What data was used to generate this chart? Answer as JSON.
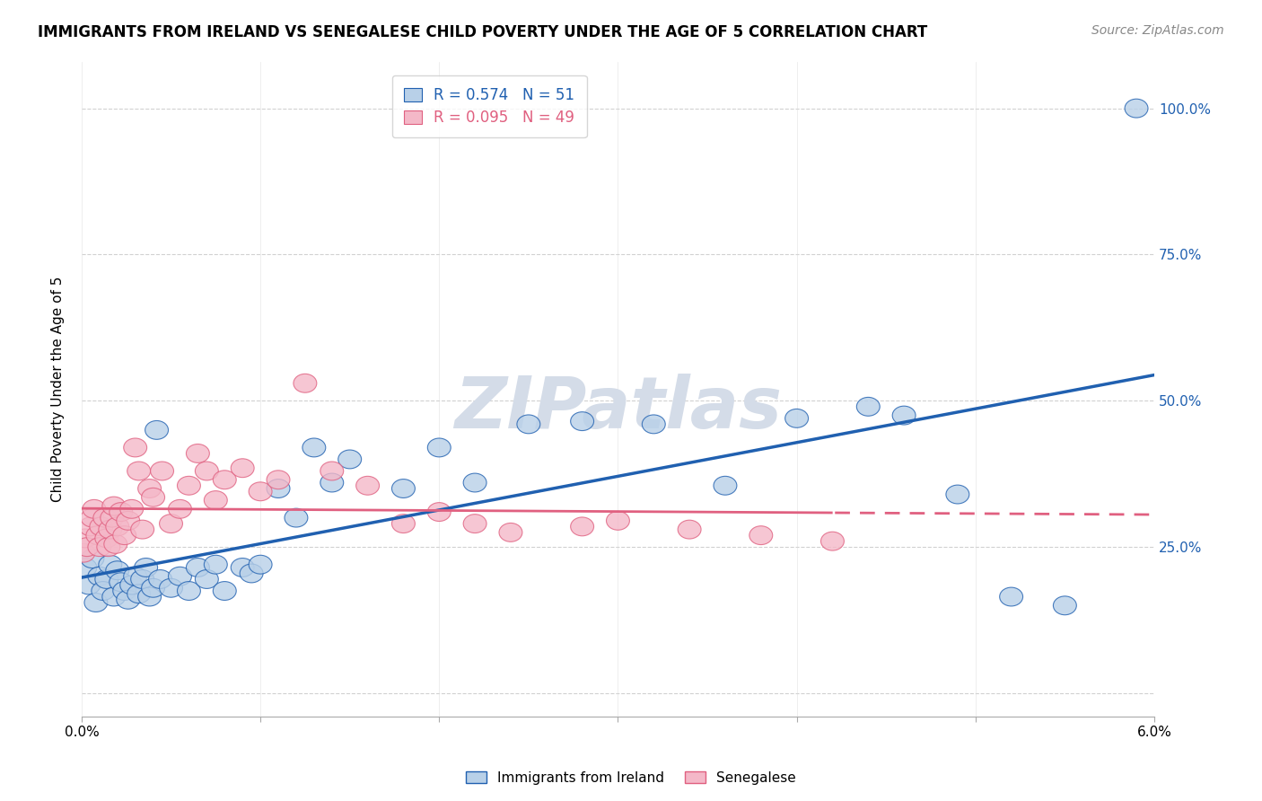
{
  "title": "IMMIGRANTS FROM IRELAND VS SENEGALESE CHILD POVERTY UNDER THE AGE OF 5 CORRELATION CHART",
  "source": "Source: ZipAtlas.com",
  "ylabel": "Child Poverty Under the Age of 5",
  "yticks": [
    0.0,
    0.25,
    0.5,
    0.75,
    1.0
  ],
  "ytick_labels": [
    "",
    "25.0%",
    "50.0%",
    "75.0%",
    "100.0%"
  ],
  "xmin": 0.0,
  "xmax": 0.06,
  "ymin": -0.04,
  "ymax": 1.08,
  "R_ireland": 0.574,
  "N_ireland": 51,
  "R_senegalese": 0.095,
  "N_senegalese": 49,
  "color_ireland": "#b8d0e8",
  "color_senegalese": "#f4b8c8",
  "line_color_ireland": "#2060b0",
  "line_color_senegalese": "#e06080",
  "watermark_color": "#d4dce8",
  "legend_label_ireland": "Immigrants from Ireland",
  "legend_label_senegalese": "Senegalese",
  "ireland_x": [
    0.0002,
    0.0004,
    0.0006,
    0.0008,
    0.001,
    0.0012,
    0.0014,
    0.0016,
    0.0018,
    0.002,
    0.0022,
    0.0024,
    0.0026,
    0.0028,
    0.003,
    0.0032,
    0.0034,
    0.0036,
    0.0038,
    0.004,
    0.0042,
    0.0044,
    0.005,
    0.0055,
    0.006,
    0.0065,
    0.007,
    0.0075,
    0.008,
    0.009,
    0.0095,
    0.01,
    0.011,
    0.012,
    0.013,
    0.014,
    0.015,
    0.018,
    0.02,
    0.022,
    0.025,
    0.028,
    0.032,
    0.036,
    0.04,
    0.044,
    0.046,
    0.049,
    0.052,
    0.055,
    0.059
  ],
  "ireland_y": [
    0.215,
    0.185,
    0.23,
    0.155,
    0.2,
    0.175,
    0.195,
    0.22,
    0.165,
    0.21,
    0.19,
    0.175,
    0.16,
    0.185,
    0.2,
    0.17,
    0.195,
    0.215,
    0.165,
    0.18,
    0.45,
    0.195,
    0.18,
    0.2,
    0.175,
    0.215,
    0.195,
    0.22,
    0.175,
    0.215,
    0.205,
    0.22,
    0.35,
    0.3,
    0.42,
    0.36,
    0.4,
    0.35,
    0.42,
    0.36,
    0.46,
    0.465,
    0.46,
    0.355,
    0.47,
    0.49,
    0.475,
    0.34,
    0.165,
    0.15,
    1.0
  ],
  "senegalese_x": [
    0.0001,
    0.0002,
    0.0003,
    0.0005,
    0.0006,
    0.0007,
    0.0009,
    0.001,
    0.0011,
    0.0013,
    0.0014,
    0.0015,
    0.0016,
    0.0017,
    0.0018,
    0.0019,
    0.002,
    0.0022,
    0.0024,
    0.0026,
    0.0028,
    0.003,
    0.0032,
    0.0034,
    0.0038,
    0.004,
    0.0045,
    0.005,
    0.0055,
    0.006,
    0.0065,
    0.007,
    0.0075,
    0.008,
    0.009,
    0.01,
    0.011,
    0.0125,
    0.014,
    0.016,
    0.018,
    0.02,
    0.022,
    0.024,
    0.028,
    0.03,
    0.034,
    0.038,
    0.042
  ],
  "senegalese_y": [
    0.24,
    0.265,
    0.25,
    0.285,
    0.3,
    0.315,
    0.27,
    0.25,
    0.285,
    0.3,
    0.265,
    0.25,
    0.28,
    0.3,
    0.32,
    0.255,
    0.285,
    0.31,
    0.27,
    0.295,
    0.315,
    0.42,
    0.38,
    0.28,
    0.35,
    0.335,
    0.38,
    0.29,
    0.315,
    0.355,
    0.41,
    0.38,
    0.33,
    0.365,
    0.385,
    0.345,
    0.365,
    0.53,
    0.38,
    0.355,
    0.29,
    0.31,
    0.29,
    0.275,
    0.285,
    0.295,
    0.28,
    0.27,
    0.26
  ]
}
